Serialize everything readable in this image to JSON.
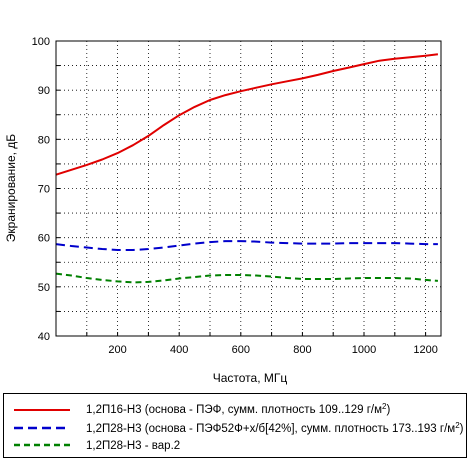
{
  "chart_data": {
    "type": "line",
    "xlabel": "Частота, МГц",
    "ylabel": "Экранирование, дБ",
    "xlim": [
      0,
      1250
    ],
    "ylim": [
      40,
      100
    ],
    "x_ticks": [
      200,
      400,
      600,
      800,
      1000,
      1200
    ],
    "y_ticks": [
      40,
      50,
      60,
      70,
      80,
      90,
      100
    ],
    "grid": "dotted",
    "legend_position": "bottom",
    "series": [
      {
        "name": "1,2П16-Н3 (основа - ПЭФ, сумм. плотность 109..129 г/м²)",
        "color": "#e00000",
        "style": "solid",
        "x": [
          0,
          50,
          100,
          150,
          200,
          250,
          300,
          350,
          400,
          450,
          500,
          550,
          600,
          650,
          700,
          750,
          800,
          850,
          900,
          950,
          1000,
          1050,
          1100,
          1150,
          1200,
          1240
        ],
        "y": [
          72.8,
          73.8,
          74.8,
          75.9,
          77.2,
          78.8,
          80.7,
          82.9,
          84.9,
          86.6,
          88.0,
          89.0,
          89.8,
          90.5,
          91.2,
          91.8,
          92.4,
          93.1,
          93.9,
          94.6,
          95.3,
          96.0,
          96.4,
          96.7,
          97.0,
          97.3
        ]
      },
      {
        "name": "1,2П28-Н3 (основа - ПЭФ52Ф+х/б[42%], сумм. плотность 173..193 г/м²)",
        "color": "#0000cc",
        "style": "dashed",
        "x": [
          0,
          50,
          100,
          150,
          200,
          250,
          300,
          350,
          400,
          450,
          500,
          550,
          600,
          650,
          700,
          750,
          800,
          850,
          900,
          950,
          1000,
          1050,
          1100,
          1150,
          1200,
          1240
        ],
        "y": [
          58.7,
          58.3,
          58.0,
          57.7,
          57.5,
          57.5,
          57.7,
          58.0,
          58.4,
          58.8,
          59.1,
          59.3,
          59.3,
          59.2,
          59.0,
          58.9,
          58.8,
          58.8,
          58.8,
          58.9,
          58.9,
          58.9,
          58.9,
          58.8,
          58.7,
          58.7
        ]
      },
      {
        "name": "1,2П28-Н3 - вар.2",
        "color": "#008000",
        "style": "dashed",
        "x": [
          0,
          50,
          100,
          150,
          200,
          250,
          300,
          350,
          400,
          450,
          500,
          550,
          600,
          650,
          700,
          750,
          800,
          850,
          900,
          950,
          1000,
          1050,
          1100,
          1150,
          1200,
          1240
        ],
        "y": [
          52.7,
          52.3,
          51.8,
          51.4,
          51.1,
          50.9,
          51.0,
          51.3,
          51.7,
          52.0,
          52.3,
          52.4,
          52.4,
          52.3,
          52.1,
          51.8,
          51.6,
          51.6,
          51.6,
          51.7,
          51.8,
          51.8,
          51.8,
          51.7,
          51.4,
          51.2
        ]
      }
    ]
  },
  "legend": {
    "items": [
      {
        "label": "1,2П16-Н3 (основа - ПЭФ, сумм. плотность 109..129 г/м",
        "sup": "2",
        "suffix": ")"
      },
      {
        "label": "1,2П28-Н3 (основа - ПЭФ52Ф+х/б[42%], сумм. плотность 173..193 г/м",
        "sup": "2",
        "suffix": ")"
      },
      {
        "label": "1,2П28-Н3 - вар.2",
        "sup": "",
        "suffix": ""
      }
    ]
  }
}
